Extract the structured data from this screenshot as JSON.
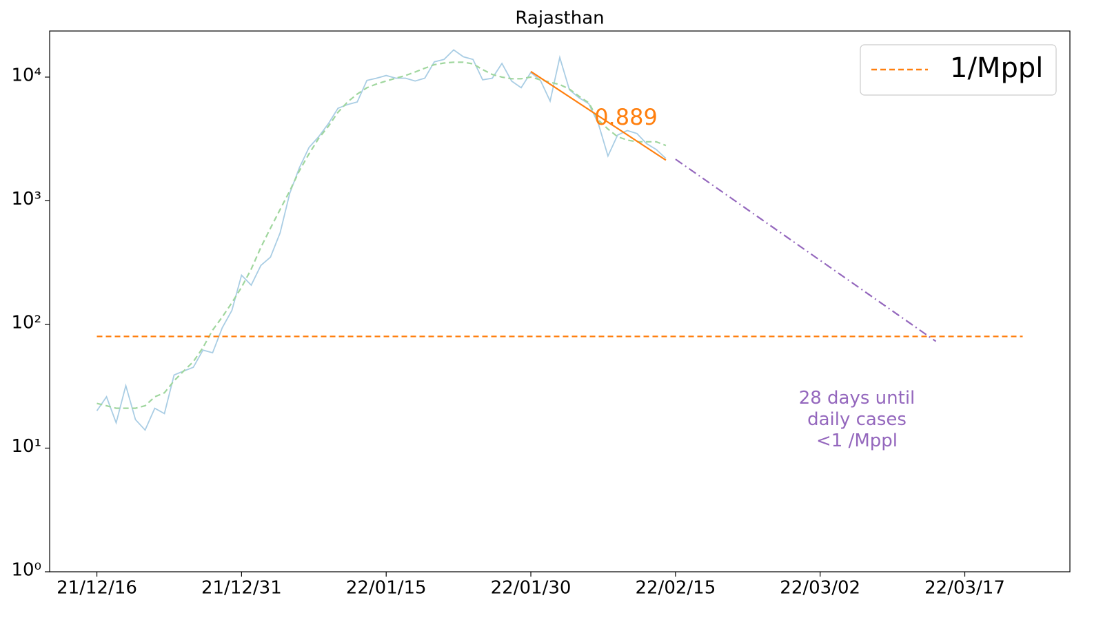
{
  "chart_data": {
    "type": "line",
    "title": "Rajasthan",
    "log_y": true,
    "ylim": [
      1,
      23600
    ],
    "yticks": [
      {
        "value": 1,
        "label": "10⁰"
      },
      {
        "value": 10,
        "label": "10¹"
      },
      {
        "value": 100,
        "label": "10²"
      },
      {
        "value": 1000,
        "label": "10³"
      },
      {
        "value": 10000,
        "label": "10⁴"
      }
    ],
    "xlim": [
      -4.9,
      100.9
    ],
    "xticks": [
      {
        "value": 0,
        "label": "21/12/16"
      },
      {
        "value": 15,
        "label": "21/12/31"
      },
      {
        "value": 30,
        "label": "22/01/15"
      },
      {
        "value": 45,
        "label": "22/01/30"
      },
      {
        "value": 60,
        "label": "22/02/15"
      },
      {
        "value": 75,
        "label": "22/03/02"
      },
      {
        "value": 90,
        "label": "22/03/17"
      }
    ],
    "legend": "upper right",
    "series": [
      {
        "color": "#a9cde4",
        "linestyle": "solid",
        "x": [
          0,
          1,
          2,
          3,
          4,
          5,
          6,
          7,
          8,
          9,
          10,
          11,
          12,
          13,
          14,
          15,
          16,
          17,
          18,
          19,
          20,
          21,
          22,
          23,
          24,
          25,
          26,
          27,
          28,
          29,
          30,
          31,
          32,
          33,
          34,
          35,
          36,
          37,
          38,
          39,
          40,
          41,
          42,
          43,
          44,
          45,
          46,
          47,
          48,
          49,
          50,
          51,
          52,
          53,
          54,
          55,
          56,
          57,
          58,
          59
        ],
        "values": [
          20,
          26,
          16,
          32,
          17,
          14,
          21,
          19,
          39,
          42,
          45,
          62,
          59,
          94,
          130,
          250,
          208,
          300,
          350,
          550,
          1150,
          1850,
          2700,
          3300,
          4200,
          5600,
          6000,
          6300,
          9400,
          9800,
          10300,
          9800,
          9800,
          9300,
          9800,
          13300,
          13900,
          16600,
          14600,
          13900,
          9500,
          9800,
          12900,
          9300,
          8200,
          10900,
          9400,
          6400,
          14400,
          7900,
          6800,
          6100,
          4200,
          2300,
          3400,
          3700,
          3500,
          2900,
          2600,
          2200
        ]
      },
      {
        "color": "#9fd69d",
        "linestyle": "dashed",
        "x": [
          0,
          1,
          2,
          3,
          4,
          5,
          6,
          7,
          8,
          9,
          10,
          11,
          12,
          13,
          14,
          15,
          16,
          17,
          18,
          19,
          20,
          21,
          22,
          23,
          24,
          25,
          26,
          27,
          28,
          29,
          30,
          31,
          32,
          33,
          34,
          35,
          36,
          37,
          38,
          39,
          40,
          41,
          42,
          43,
          44,
          45,
          46,
          47,
          48,
          49,
          50,
          51,
          52,
          53,
          54,
          55,
          56,
          57,
          58,
          59
        ],
        "values": [
          23,
          22,
          21,
          21,
          21,
          22,
          26,
          28,
          35,
          42,
          50,
          65,
          90,
          115,
          150,
          200,
          280,
          420,
          600,
          850,
          1200,
          1750,
          2400,
          3200,
          4000,
          5200,
          6300,
          7300,
          8200,
          8800,
          9300,
          9800,
          10300,
          11000,
          11800,
          12600,
          13000,
          13200,
          13200,
          12800,
          11500,
          10500,
          10000,
          9700,
          9700,
          10000,
          9500,
          9100,
          8700,
          8000,
          7000,
          6200,
          4500,
          3800,
          3300,
          3100,
          3000,
          3000,
          3000,
          2800
        ]
      },
      {
        "color": "#ff7f0e",
        "linestyle": "solid",
        "x": [
          45,
          59
        ],
        "values": [
          11100,
          2130
        ]
      },
      {
        "color": "#9467bd",
        "linestyle": "dashdot",
        "x": [
          60,
          87
        ],
        "values": [
          2170,
          73
        ]
      },
      {
        "name": "1/Mppl",
        "color": "#ff7f0e",
        "linestyle": "dashed",
        "x": [
          0,
          96
        ],
        "values": [
          80,
          80
        ]
      }
    ],
    "annotations": [
      {
        "text": "0.889",
        "color": "#ff7f0e"
      },
      {
        "lines": [
          "28 days until",
          "daily cases",
          "<1 /Mppl"
        ],
        "color": "#9467bd"
      }
    ]
  }
}
